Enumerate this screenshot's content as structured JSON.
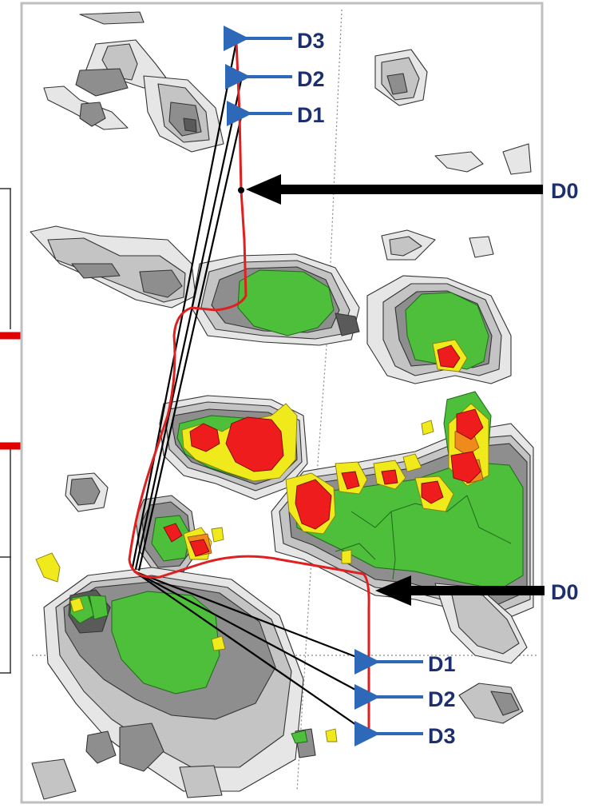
{
  "colors": {
    "map_border": "#bfbfbf",
    "cell_light": "#e6e6e6",
    "cell_mid": "#c4c4c4",
    "cell_dark": "#8e8e8e",
    "cell_darker": "#5a5a5a",
    "green": "#4dbf3b",
    "yellow": "#f0ea1c",
    "orange": "#f08a1c",
    "red": "#ee1c1c",
    "track_red": "#e02020",
    "arrow_blue": "#2e68b8",
    "arrow_black": "#000000",
    "label_navy": "#1c2f6e",
    "highlight_red": "#e00000"
  },
  "labels": {
    "north": {
      "d3": "D3",
      "d2": "D2",
      "d1": "D1",
      "d0": "D0"
    },
    "south": {
      "d0": "D0",
      "d1": "D1",
      "d2": "D2",
      "d3": "D3"
    }
  },
  "icons": {
    "small_arrow": "arrow-left-icon",
    "large_arrow": "arrow-left-icon"
  }
}
